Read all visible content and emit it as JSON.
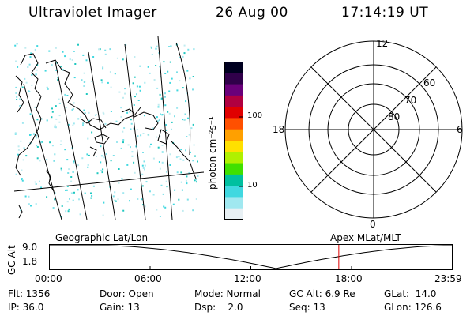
{
  "header": {
    "title": "Ultraviolet Imager",
    "date": "26 Aug 00",
    "time": "17:14:19 UT"
  },
  "colorbar": {
    "unit_label": "photon cm⁻²s⁻¹",
    "ticks": [
      "100",
      "10"
    ],
    "colors": [
      "#000020",
      "#30004a",
      "#6a007a",
      "#b00040",
      "#e00000",
      "#ff5000",
      "#ffa000",
      "#ffe000",
      "#b0f000",
      "#40e000",
      "#00c0a0",
      "#40d8e0",
      "#a0e8f0",
      "#e8f0f4"
    ]
  },
  "polar": {
    "mlt_labels": {
      "top": "12",
      "left": "18",
      "right": "6",
      "bottom": "0"
    },
    "lat_labels": [
      "60",
      "70",
      "80"
    ]
  },
  "altitude_plot": {
    "left_title": "Geographic Lat/Lon",
    "right_title": "Apex MLat/MLT",
    "y_axis_label": "GC Alt",
    "y_ticks": [
      "9.0",
      "1.8"
    ],
    "x_ticks": [
      "00:00",
      "06:00",
      "12:00",
      "18:00",
      "23:59"
    ],
    "marker_time_hours": 17.24,
    "marker_color": "#e00000"
  },
  "footer": {
    "flt": "Flt: 1356",
    "ip": "IP: 36.0",
    "door": "Door: Open",
    "gain": "Gain: 13",
    "mode": "Mode: Normal",
    "dsp": "Dsp:    2.0",
    "gc_alt": "GC Alt: 6.9 Re",
    "seq": "Seq: 13",
    "glat": "GLat:  14.0",
    "glon": "GLon: 126.6"
  }
}
